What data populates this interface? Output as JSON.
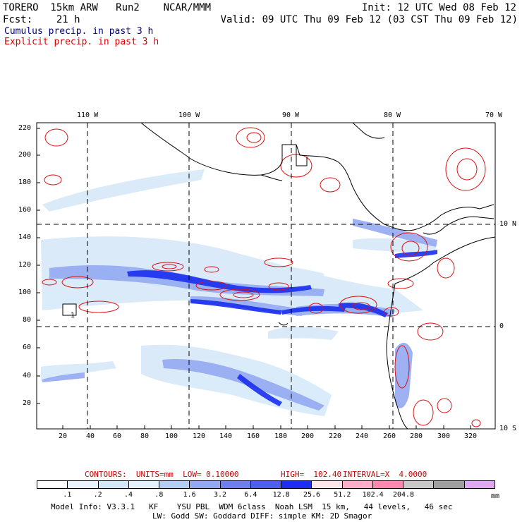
{
  "header": {
    "line1_left": "TORERO  15km ARW   Run2    NCAR/MMM",
    "line1_right": "Init: 12 UTC Wed 08 Feb 12",
    "line2_left": "Fcst:    21 h",
    "line2_right": "Valid: 09 UTC Thu 09 Feb 12 (03 CST Thu 09 Feb 12)",
    "cumulus_label": "Cumulus precip. in past 3 h",
    "explicit_label": "Explicit precip. in past 3 h"
  },
  "colors": {
    "cumulus_text": "#00008b",
    "explicit_text": "#dd0000",
    "contour": "#dd1111",
    "coast": "#000000",
    "contour_info": "#cc0000"
  },
  "map": {
    "lon_top": [
      "110 W",
      "100 W",
      "90 W",
      "80 W",
      "70 W"
    ],
    "lat_right": [
      "10 N",
      "0",
      "10 S"
    ],
    "y_axis": [
      "220",
      "200",
      "180",
      "160",
      "140",
      "120",
      "100",
      "80",
      "60",
      "40",
      "20"
    ],
    "x_axis": [
      "20",
      "40",
      "60",
      "80",
      "100",
      "120",
      "140",
      "160",
      "180",
      "200",
      "220",
      "240",
      "260",
      "280",
      "300",
      "320"
    ],
    "contour_tag": "1"
  },
  "contour_info": {
    "units": "CONTOURS:  UNITS=mm  LOW= 0.10000",
    "high": "HIGH=  102.40",
    "interval": "INTERVAL=X  4.0000"
  },
  "legend": {
    "colors": [
      "#ffffff",
      "#eaf3fc",
      "#d4e7f8",
      "#e2f2fd",
      "#b4cdf6",
      "#93aaf2",
      "#6f80ec",
      "#4d5ef0",
      "#1a2ff0",
      "#ffe6ea",
      "#ffb0c8",
      "#ff88b0",
      "#c8c8c8",
      "#a0a0a0",
      "#e0a8f4"
    ],
    "ticks": [
      ".1",
      ".2",
      ".4",
      ".8",
      "1.6",
      "3.2",
      "6.4",
      "12.8",
      "25.6",
      "51.2",
      "102.4",
      "204.8"
    ],
    "unit": "mm"
  },
  "footer": {
    "line1": "Model Info: V3.3.1   KF    YSU PBL  WDM 6class  Noah LSM  15 km,   44 levels,   46 sec",
    "line2": "LW: Godd SW: Goddard DIFF: simple KM: 2D Smagor"
  }
}
